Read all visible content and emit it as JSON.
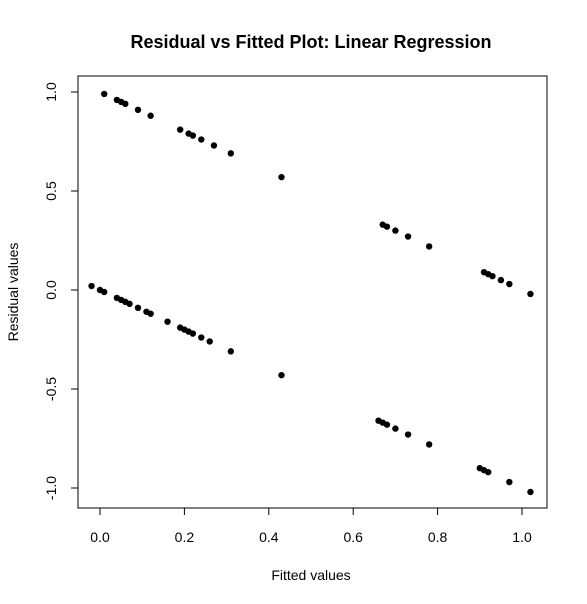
{
  "chart_data": {
    "type": "scatter",
    "title": "Residual vs Fitted Plot: Linear Regression",
    "xlabel": "Fitted values",
    "ylabel": "Residual values",
    "xlim": [
      -0.05,
      1.05
    ],
    "ylim": [
      -1.1,
      1.1
    ],
    "x_ticks": [
      0.0,
      0.2,
      0.4,
      0.6,
      0.8,
      1.0
    ],
    "x_tick_labels": [
      "0.0",
      "0.2",
      "0.4",
      "0.6",
      "0.8",
      "1.0"
    ],
    "y_ticks": [
      -1.0,
      -0.5,
      0.0,
      0.5,
      1.0
    ],
    "y_tick_labels": [
      "-1.0",
      "-0.5",
      "0.0",
      "0.5",
      "1.0"
    ],
    "grid": false,
    "marker_color": "#000000",
    "series": [
      {
        "points": [
          [
            0.01,
            0.99
          ],
          [
            0.04,
            0.96
          ],
          [
            0.05,
            0.95
          ],
          [
            0.06,
            0.94
          ],
          [
            0.09,
            0.91
          ],
          [
            0.12,
            0.88
          ],
          [
            0.19,
            0.81
          ],
          [
            0.21,
            0.79
          ],
          [
            0.22,
            0.78
          ],
          [
            0.24,
            0.76
          ],
          [
            0.27,
            0.73
          ],
          [
            0.31,
            0.69
          ],
          [
            0.43,
            0.57
          ],
          [
            0.67,
            0.33
          ],
          [
            0.68,
            0.32
          ],
          [
            0.7,
            0.3
          ],
          [
            0.73,
            0.27
          ],
          [
            0.78,
            0.22
          ],
          [
            0.91,
            0.09
          ],
          [
            0.92,
            0.08
          ],
          [
            0.93,
            0.07
          ],
          [
            0.95,
            0.05
          ],
          [
            0.97,
            0.03
          ],
          [
            1.02,
            -0.02
          ],
          [
            -0.02,
            0.02
          ],
          [
            0.0,
            0.0
          ],
          [
            0.01,
            -0.01
          ],
          [
            0.04,
            -0.04
          ],
          [
            0.05,
            -0.05
          ],
          [
            0.06,
            -0.06
          ],
          [
            0.07,
            -0.07
          ],
          [
            0.09,
            -0.09
          ],
          [
            0.11,
            -0.11
          ],
          [
            0.12,
            -0.12
          ],
          [
            0.16,
            -0.16
          ],
          [
            0.19,
            -0.19
          ],
          [
            0.2,
            -0.2
          ],
          [
            0.21,
            -0.21
          ],
          [
            0.22,
            -0.22
          ],
          [
            0.24,
            -0.24
          ],
          [
            0.26,
            -0.26
          ],
          [
            0.31,
            -0.31
          ],
          [
            0.43,
            -0.43
          ],
          [
            0.66,
            -0.66
          ],
          [
            0.67,
            -0.67
          ],
          [
            0.68,
            -0.68
          ],
          [
            0.7,
            -0.7
          ],
          [
            0.73,
            -0.73
          ],
          [
            0.78,
            -0.78
          ],
          [
            0.9,
            -0.9
          ],
          [
            0.91,
            -0.91
          ],
          [
            0.92,
            -0.92
          ],
          [
            0.97,
            -0.97
          ],
          [
            1.02,
            -1.02
          ]
        ]
      }
    ]
  }
}
